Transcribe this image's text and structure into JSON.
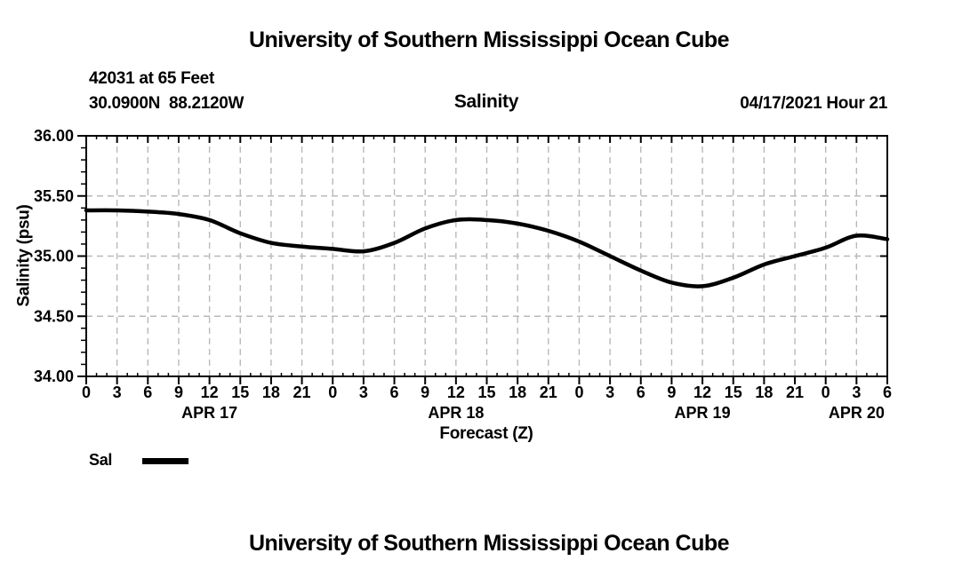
{
  "page": {
    "top_title": "University of Southern Mississippi Ocean Cube",
    "bottom_title": "University of Southern Mississippi Ocean Cube"
  },
  "header": {
    "station_id_line": "42031 at 65 Feet",
    "coordinates_line": "30.0900N  88.2120W",
    "chart_title": "Salinity",
    "datetime": "04/17/2021 Hour 21"
  },
  "legend": {
    "label": "Sal",
    "swatch_color": "#000000"
  },
  "colors": {
    "line": "#000000",
    "grid": "#b9b9b9",
    "frame": "#000000",
    "background": "#ffffff"
  },
  "chart_data": {
    "type": "line",
    "title": "Salinity",
    "xlabel": "Forecast (Z)",
    "ylabel": "Salinity (psu)",
    "ylim": [
      34.0,
      36.0
    ],
    "y_major_ticks": [
      34.0,
      34.5,
      35.0,
      35.5,
      36.0
    ],
    "y_tick_labels": [
      "34.00",
      "34.50",
      "35.00",
      "35.50",
      "36.00"
    ],
    "y_minor_step": 0.1,
    "x_hours_range": [
      0,
      78
    ],
    "x_major_step_hours": 3,
    "x_minor_step_hours": 1,
    "x_tick_labels": [
      "0",
      "3",
      "6",
      "9",
      "12",
      "15",
      "18",
      "21",
      "0",
      "3",
      "6",
      "9",
      "12",
      "15",
      "18",
      "21",
      "0",
      "3",
      "6",
      "9",
      "12",
      "15",
      "18",
      "21",
      "0",
      "3",
      "6"
    ],
    "day_labels": [
      {
        "label": "APR 17",
        "hour": 12
      },
      {
        "label": "APR 18",
        "hour": 36
      },
      {
        "label": "APR 19",
        "hour": 60
      },
      {
        "label": "APR 20",
        "hour": 75
      }
    ],
    "grid": true,
    "legend_position": "bottom-left",
    "series": [
      {
        "name": "Sal",
        "color": "#000000",
        "x_hours": [
          0,
          3,
          6,
          9,
          12,
          15,
          18,
          21,
          24,
          27,
          30,
          33,
          36,
          39,
          42,
          45,
          48,
          51,
          54,
          57,
          60,
          63,
          66,
          69,
          72,
          75,
          78
        ],
        "values": [
          35.38,
          35.38,
          35.37,
          35.35,
          35.3,
          35.19,
          35.11,
          35.08,
          35.06,
          35.04,
          35.11,
          35.23,
          35.3,
          35.3,
          35.27,
          35.21,
          35.12,
          35.0,
          34.88,
          34.78,
          34.75,
          34.82,
          34.93,
          35.0,
          35.07,
          35.17,
          35.14
        ]
      }
    ]
  }
}
